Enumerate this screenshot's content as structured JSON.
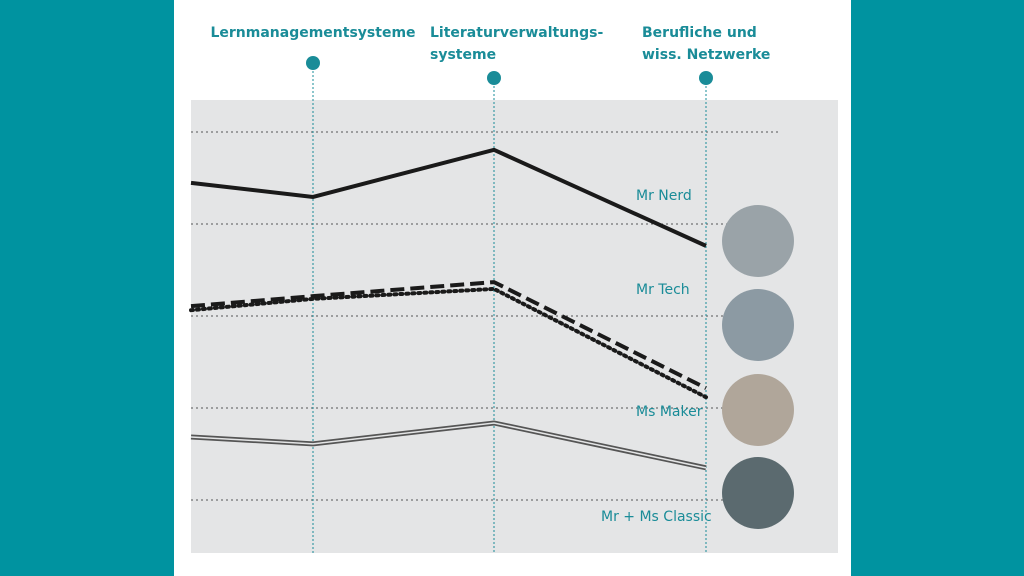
{
  "chart_data": {
    "type": "line",
    "categories": [
      null,
      "Lernmanagementsysteme",
      "Literaturverwaltungs-\nsysteme",
      "Berufliche und\nwiss. Netzwerke"
    ],
    "ylim": [
      0,
      100
    ],
    "series": [
      {
        "name": "Mr Nerd",
        "color": "#1a1a1a",
        "style": "solid",
        "values": [
          81.7,
          78.6,
          89.0,
          67.8
        ]
      },
      {
        "name": "Mr Tech",
        "color": "#1a1a1a",
        "style": "dashed",
        "values": [
          54.5,
          56.7,
          59.8,
          36.4
        ]
      },
      {
        "name": "Ms Maker",
        "color": "#1a1a1a",
        "style": "dotted",
        "values": [
          53.6,
          56.1,
          58.3,
          34.4
        ]
      },
      {
        "name": "Mr + Ms Classic",
        "color": "#555555",
        "style": "double",
        "values": [
          25.6,
          24.1,
          28.7,
          18.8
        ]
      }
    ]
  }
}
